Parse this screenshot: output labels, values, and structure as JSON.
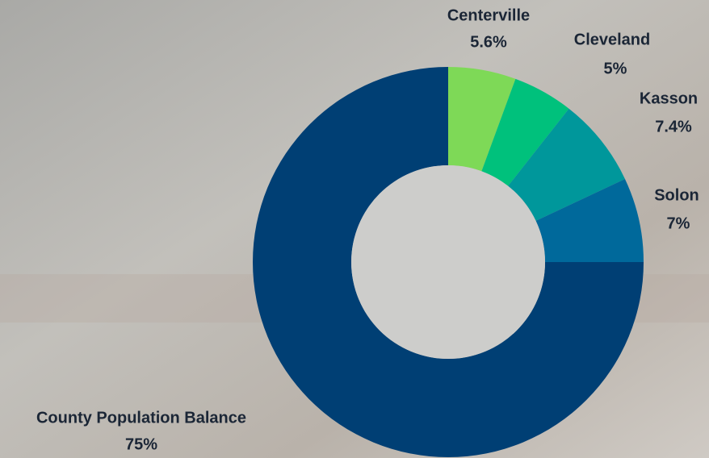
{
  "chart_data": {
    "type": "donut",
    "categories": [
      "Centerville",
      "Cleveland",
      "Kasson",
      "Solon",
      "County Population Balance"
    ],
    "values": [
      5.6,
      5,
      7.4,
      7,
      75
    ],
    "value_labels": [
      "5.6%",
      "5%",
      "7.4%",
      "7%",
      "75%"
    ],
    "colors": [
      "#7ed957",
      "#00c17c",
      "#00979b",
      "#00699b",
      "#003f74"
    ]
  }
}
